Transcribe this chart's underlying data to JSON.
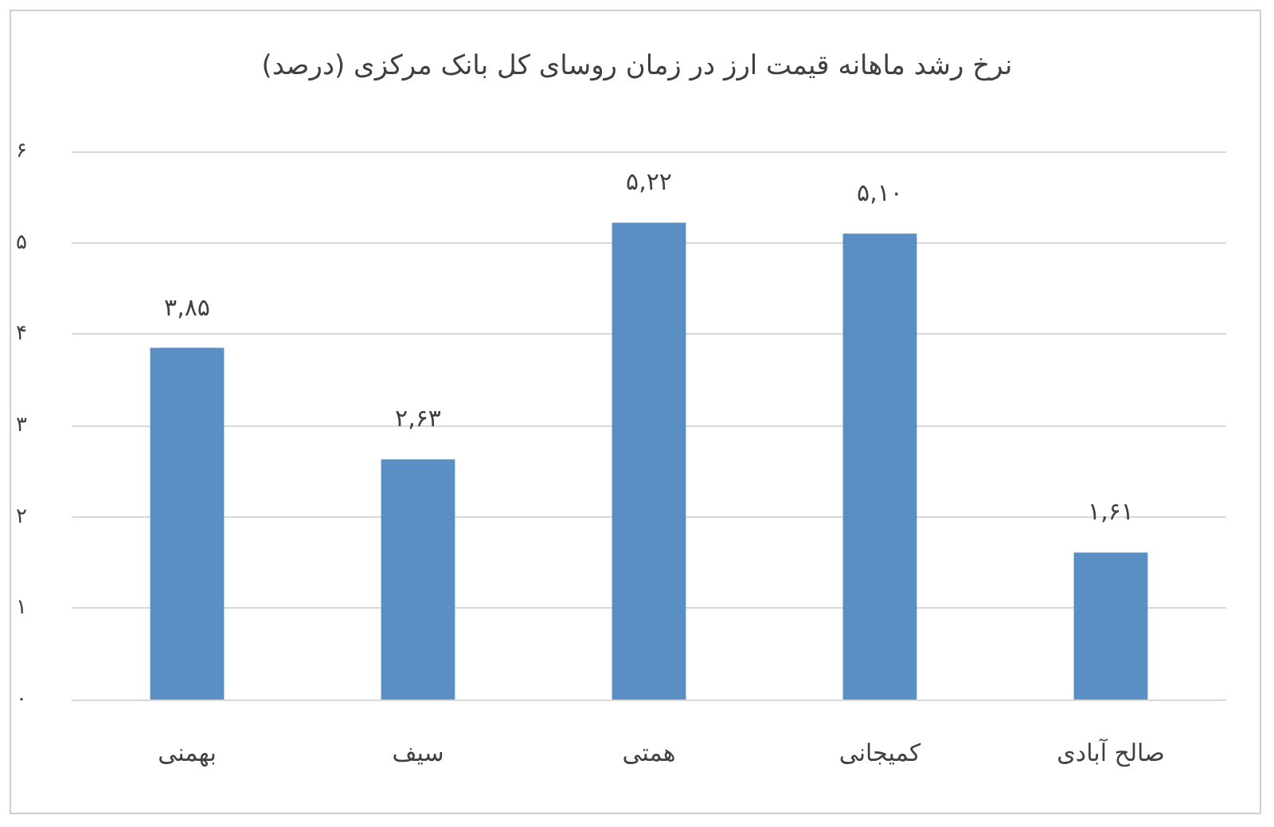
{
  "chart_data": {
    "type": "bar",
    "title": "نرخ رشد ماهانه قیمت ارز در زمان روسای کل بانک مرکزی (درصد)",
    "categories": [
      "بهمنی",
      "سیف",
      "همتی",
      "کمیجانی",
      "صالح آبادی"
    ],
    "values": [
      3.85,
      2.63,
      5.22,
      5.1,
      1.61
    ],
    "value_labels": [
      "۳,۸۵",
      "۲,۶۳",
      "۵,۲۲",
      "۵,۱۰",
      "۱,۶۱"
    ],
    "color": "#5a8fc3",
    "ylim": [
      0,
      6
    ],
    "yticks": [
      {
        "value": 0,
        "label": "۰"
      },
      {
        "value": 1,
        "label": "۱"
      },
      {
        "value": 2,
        "label": "۲"
      },
      {
        "value": 3,
        "label": "۳"
      },
      {
        "value": 4,
        "label": "۴"
      },
      {
        "value": 5,
        "label": "۵"
      },
      {
        "value": 6,
        "label": "۶"
      }
    ],
    "grid": "y"
  }
}
